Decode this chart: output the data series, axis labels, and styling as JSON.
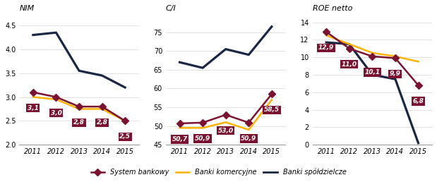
{
  "years": [
    2011,
    2012,
    2013,
    2014,
    2015
  ],
  "nim": {
    "title": "NIM",
    "ylim": [
      2.0,
      4.75
    ],
    "yticks": [
      2.0,
      2.5,
      3.0,
      3.5,
      4.0,
      4.5
    ],
    "system": [
      3.1,
      3.0,
      2.8,
      2.8,
      2.5
    ],
    "komercyjne": [
      3.0,
      2.95,
      2.75,
      2.75,
      2.5
    ],
    "spoldzielcze": [
      4.3,
      4.35,
      3.55,
      3.45,
      3.2
    ],
    "labels": [
      "3,1",
      "3,0",
      "2,8",
      "2,8",
      "2,5"
    ]
  },
  "ci": {
    "title": "C/I",
    "ylim": [
      45,
      80
    ],
    "yticks": [
      45,
      50,
      55,
      60,
      65,
      70,
      75
    ],
    "system": [
      50.7,
      50.9,
      53.0,
      50.9,
      58.5
    ],
    "komercyjne": [
      49.5,
      49.5,
      51.0,
      49.0,
      57.0
    ],
    "spoldzielcze": [
      67.0,
      65.5,
      70.5,
      69.0,
      76.5
    ],
    "labels": [
      "50,7",
      "50,9",
      "53,0",
      "50,9",
      "58,5"
    ]
  },
  "roe": {
    "title": "ROE netto",
    "ylim": [
      0,
      15
    ],
    "yticks": [
      0,
      2,
      4,
      6,
      8,
      10,
      12,
      14
    ],
    "system": [
      12.9,
      11.0,
      10.1,
      9.9,
      6.8
    ],
    "komercyjne": [
      12.5,
      11.5,
      10.5,
      10.1,
      9.5
    ],
    "spoldzielcze": [
      11.7,
      11.5,
      8.0,
      7.5,
      0.2
    ],
    "labels": [
      "12,9",
      "11,0",
      "10,1",
      "9,9",
      "6,8"
    ]
  },
  "colors": {
    "system": "#7B1230",
    "komercyjne": "#FFB300",
    "spoldzielcze": "#1A2744"
  },
  "label_bg": "#7B1230",
  "label_fg": "#FFFFFF",
  "marker": "D",
  "linewidth": 1.8,
  "markersize": 5,
  "legend": {
    "system": "System bankowy",
    "komercyjne": "Banki komercyjne",
    "spoldzielcze": "Banki spółdzielcze"
  }
}
